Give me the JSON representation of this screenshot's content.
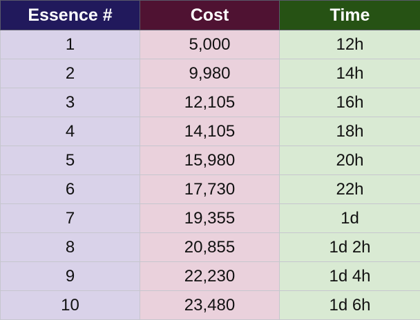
{
  "table": {
    "headers": [
      "Essence #",
      "Cost",
      "Time"
    ],
    "rows": [
      [
        "1",
        "5,000",
        "12h"
      ],
      [
        "2",
        "9,980",
        "14h"
      ],
      [
        "3",
        "12,105",
        "16h"
      ],
      [
        "4",
        "14,105",
        "18h"
      ],
      [
        "5",
        "15,980",
        "20h"
      ],
      [
        "6",
        "17,730",
        "22h"
      ],
      [
        "7",
        "19,355",
        "1d"
      ],
      [
        "8",
        "20,855",
        "1d 2h"
      ],
      [
        "9",
        "22,230",
        "1d 4h"
      ],
      [
        "10",
        "23,480",
        "1d 6h"
      ]
    ]
  },
  "colors": {
    "header_essence": "#21195c",
    "header_cost": "#4f1232",
    "header_time": "#265214",
    "cell_essence": "#d9d2e9",
    "cell_cost": "#ead1dc",
    "cell_time": "#d9ead3"
  }
}
